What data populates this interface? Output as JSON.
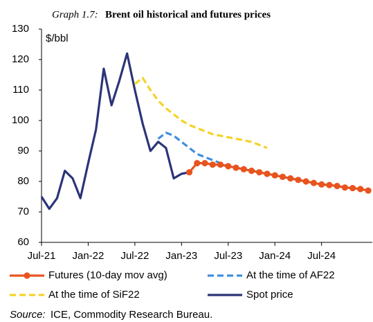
{
  "chart_data": {
    "type": "line",
    "title_label": "Graph 1.7:",
    "title": "Brent oil historical and futures prices",
    "y_unit": "$/bbl",
    "source_label": "Source:",
    "source": "ICE, Commodity Research Bureau.",
    "categories": [
      "Jul-21",
      null,
      null,
      null,
      null,
      null,
      "Jan-22",
      null,
      null,
      null,
      null,
      null,
      "Jul-22",
      null,
      null,
      null,
      null,
      null,
      "Jan-23",
      null,
      null,
      null,
      null,
      null,
      "Jul-23",
      null,
      null,
      null,
      null,
      null,
      "Jan-24",
      null,
      null,
      null,
      null,
      null,
      "Jul-24",
      null,
      null,
      null,
      null,
      null,
      null
    ],
    "ylim": [
      60,
      130
    ],
    "yticks": [
      60,
      70,
      80,
      90,
      100,
      110,
      120,
      130
    ],
    "grid": false,
    "legend": "bottom",
    "series": [
      {
        "name": "Futures (10-day mov avg)",
        "color": "#e8541e",
        "dash": false,
        "markers": true,
        "values": [
          null,
          null,
          null,
          null,
          null,
          null,
          null,
          null,
          null,
          null,
          null,
          null,
          null,
          null,
          null,
          null,
          null,
          null,
          null,
          83,
          86,
          86,
          85.5,
          85.5,
          85,
          84.5,
          84,
          83.5,
          83,
          82.5,
          82,
          81.5,
          81,
          80.5,
          80,
          79.5,
          79,
          78.8,
          78.5,
          78,
          77.8,
          77.5,
          77
        ]
      },
      {
        "name": "At the time of AF22",
        "color": "#3d8fe0",
        "dash": true,
        "markers": false,
        "values": [
          null,
          null,
          null,
          null,
          null,
          null,
          null,
          null,
          null,
          null,
          null,
          null,
          null,
          null,
          null,
          94,
          96,
          95,
          93,
          91,
          89,
          88,
          87,
          86,
          85,
          84.5,
          84,
          83.5,
          83,
          82.5,
          82,
          81.5,
          81,
          80.5,
          80,
          79.5,
          79,
          78.8,
          78.5,
          78,
          77.8,
          77.5,
          77
        ]
      },
      {
        "name": "At the time of SiF22",
        "color": "#f5d327",
        "dash": true,
        "markers": false,
        "values": [
          null,
          null,
          null,
          null,
          null,
          null,
          null,
          null,
          null,
          null,
          null,
          null,
          112,
          114,
          110,
          106.5,
          104,
          102,
          100,
          98.5,
          97.5,
          96.5,
          95.5,
          95,
          94.5,
          94,
          93.5,
          93,
          92,
          91,
          null,
          null,
          null,
          null,
          null,
          null,
          null,
          null,
          null,
          null,
          null,
          null,
          null
        ]
      },
      {
        "name": "Spot price",
        "color": "#2b3478",
        "dash": false,
        "markers": false,
        "values": [
          75,
          71,
          74.5,
          83.5,
          81,
          74.5,
          86,
          97,
          117,
          105,
          113,
          122,
          110,
          99,
          90,
          93,
          91,
          81,
          82.5,
          83,
          null,
          null,
          null,
          null,
          null,
          null,
          null,
          null,
          null,
          null,
          null,
          null,
          null,
          null,
          null,
          null,
          null,
          null,
          null,
          null,
          null,
          null,
          null
        ]
      }
    ]
  }
}
